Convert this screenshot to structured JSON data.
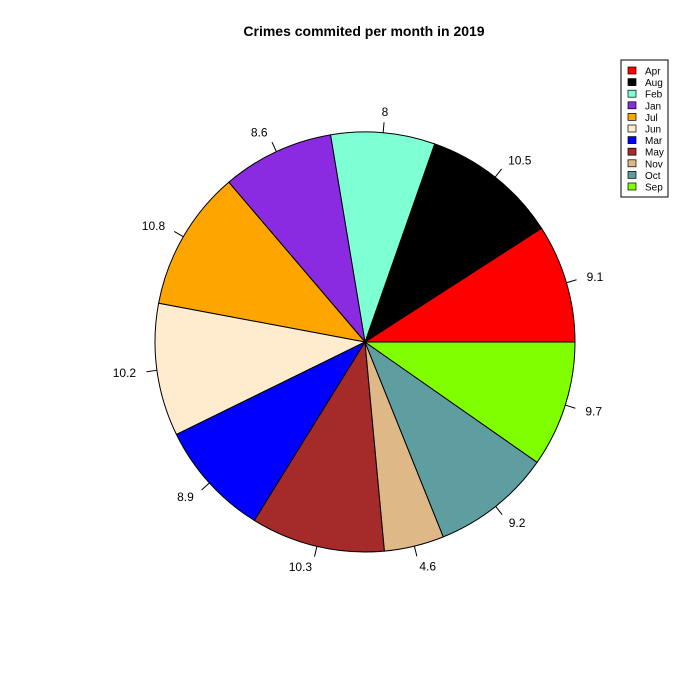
{
  "chart_data": {
    "type": "pie",
    "title": "Crimes commited per month in 2019",
    "slices": [
      {
        "name": "Apr",
        "value": 9.1,
        "label": "9.1",
        "color": "#ff0000"
      },
      {
        "name": "Aug",
        "value": 10.5,
        "label": "10.5",
        "color": "#000000"
      },
      {
        "name": "Feb",
        "value": 8,
        "label": "8",
        "color": "#7fffd4"
      },
      {
        "name": "Jan",
        "value": 8.6,
        "label": "8.6",
        "color": "#8a2be2"
      },
      {
        "name": "Jul",
        "value": 10.8,
        "label": "10.8",
        "color": "#ffa500"
      },
      {
        "name": "Jun",
        "value": 10.2,
        "label": "10.2",
        "color": "#ffebcd"
      },
      {
        "name": "Mar",
        "value": 8.9,
        "label": "8.9",
        "color": "#0000ff"
      },
      {
        "name": "May",
        "value": 10.3,
        "label": "10.3",
        "color": "#a52a2a"
      },
      {
        "name": "Nov",
        "value": 4.6,
        "label": "4.6",
        "color": "#deb887"
      },
      {
        "name": "Oct",
        "value": 9.2,
        "label": "9.2",
        "color": "#5f9ea0"
      },
      {
        "name": "Sep",
        "value": 9.7,
        "label": "9.7",
        "color": "#7fff00"
      }
    ],
    "direction": "counterclockwise",
    "start": "3 o'clock",
    "legend_position": "top-right",
    "legend": [
      "Apr",
      "Aug",
      "Feb",
      "Jan",
      "Jul",
      "Jun",
      "Mar",
      "May",
      "Nov",
      "Oct",
      "Sep"
    ]
  }
}
